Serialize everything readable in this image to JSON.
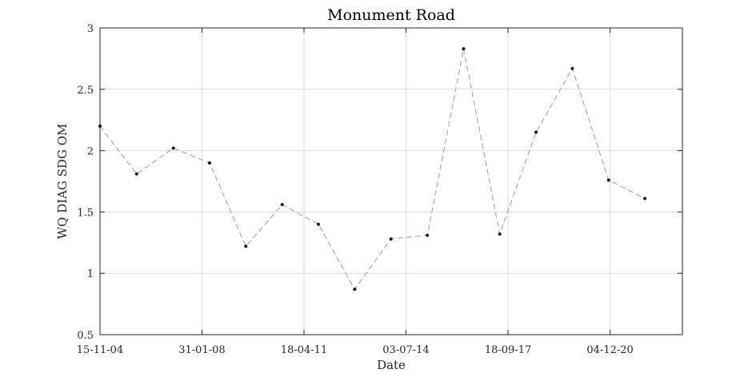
{
  "chart_data": {
    "type": "line",
    "title": "Monument Road",
    "xlabel": "Date",
    "ylabel": "WQ DIAG SDG OM",
    "xlim": [
      "2004-11-15",
      "2023-03-15"
    ],
    "ylim": [
      0.5,
      3
    ],
    "xticks": [
      {
        "date": "2004-11-15",
        "label": "15-11-04"
      },
      {
        "date": "2008-01-31",
        "label": "31-01-08"
      },
      {
        "date": "2011-04-18",
        "label": "18-04-11"
      },
      {
        "date": "2014-07-03",
        "label": "03-07-14"
      },
      {
        "date": "2017-09-18",
        "label": "18-09-17"
      },
      {
        "date": "2020-12-04",
        "label": "04-12-20"
      }
    ],
    "yticks": [
      {
        "value": 0.5,
        "label": "0.5"
      },
      {
        "value": 1,
        "label": "1"
      },
      {
        "value": 1.5,
        "label": "1.5"
      },
      {
        "value": 2,
        "label": "2"
      },
      {
        "value": 2.5,
        "label": "2.5"
      },
      {
        "value": 3,
        "label": "3"
      }
    ],
    "grid": true,
    "series": [
      {
        "points": [
          {
            "x": "2004-11-15",
            "y": 2.2
          },
          {
            "x": "2006-01-10",
            "y": 1.81
          },
          {
            "x": "2007-03-08",
            "y": 2.02
          },
          {
            "x": "2008-04-28",
            "y": 1.9
          },
          {
            "x": "2009-06-18",
            "y": 1.22
          },
          {
            "x": "2010-08-10",
            "y": 1.56
          },
          {
            "x": "2011-09-30",
            "y": 1.4
          },
          {
            "x": "2012-11-20",
            "y": 0.87
          },
          {
            "x": "2014-01-11",
            "y": 1.28
          },
          {
            "x": "2015-03-05",
            "y": 1.31
          },
          {
            "x": "2016-04-25",
            "y": 2.83
          },
          {
            "x": "2017-06-15",
            "y": 1.32
          },
          {
            "x": "2018-08-06",
            "y": 2.15
          },
          {
            "x": "2019-09-27",
            "y": 2.67
          },
          {
            "x": "2020-11-17",
            "y": 1.76
          },
          {
            "x": "2022-01-08",
            "y": 1.61
          }
        ],
        "line_color": "#9a9a9a",
        "marker_color": "#1a1a1a",
        "line_style": "dashed"
      }
    ]
  }
}
